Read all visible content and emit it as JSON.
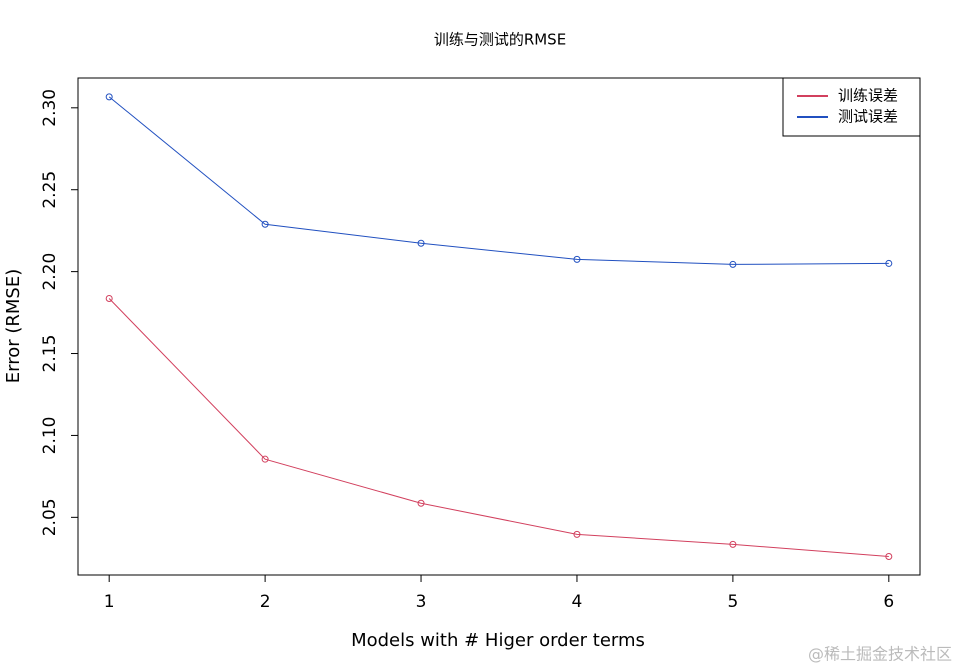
{
  "chart_data": {
    "type": "line",
    "title": "训练与测试的RMSE",
    "x_label": "Models with # Higer order terms",
    "y_label": "Error (RMSE)",
    "x": [
      1,
      2,
      3,
      4,
      5,
      6
    ],
    "series": [
      {
        "name": "训练误差",
        "color": "#d2405e",
        "values": [
          2.1836,
          2.0855,
          2.0586,
          2.0396,
          2.0335,
          2.0261
        ]
      },
      {
        "name": "测试误差",
        "color": "#2150c0",
        "values": [
          2.3067,
          2.2289,
          2.2173,
          2.2075,
          2.2044,
          2.205
        ]
      }
    ],
    "xlim": [
      0.8,
      6.2
    ],
    "ylim": [
      2.0148,
      2.3182
    ],
    "xticks": [
      1,
      2,
      3,
      4,
      5,
      6
    ],
    "yticks": [
      2.05,
      {
        "value": 2.1,
        "label": "2.10"
      },
      2.15,
      {
        "value": 2.2,
        "label": "2.20"
      },
      2.25,
      {
        "value": 2.3,
        "label": "2.30"
      }
    ],
    "legend": "top-right",
    "watermark": "@稀土掘金技术社区"
  }
}
